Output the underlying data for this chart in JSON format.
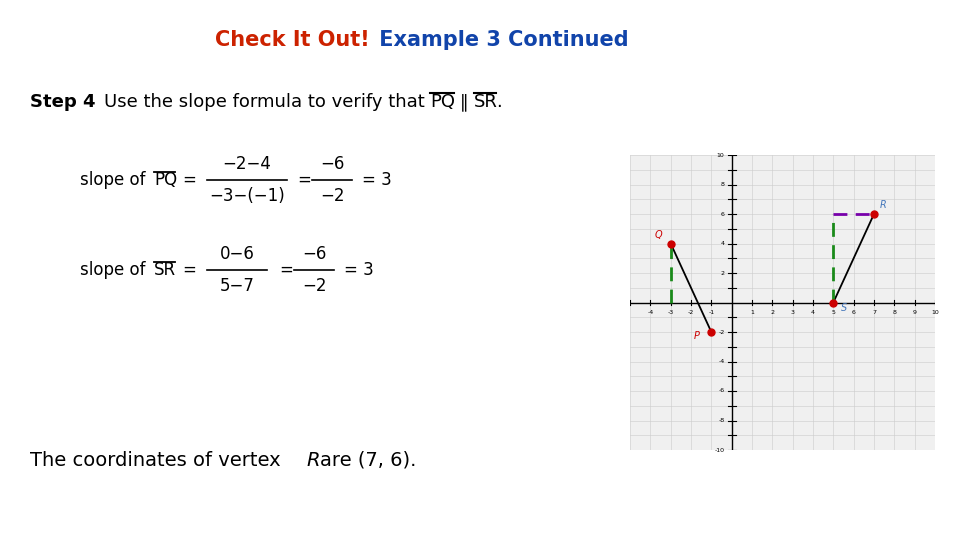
{
  "title_red": "Check It Out!",
  "title_blue": " Example 3 Continued",
  "title_fontsize": 15,
  "bg_color": "#ffffff",
  "conclusion_fontsize": 14,
  "graph": {
    "xlim": [
      -5,
      10
    ],
    "ylim": [
      -10,
      10
    ],
    "points": {
      "P": [
        -1,
        -2
      ],
      "Q": [
        -3,
        4
      ],
      "R": [
        7,
        6
      ],
      "S": [
        5,
        0
      ]
    },
    "point_color": "#cc0000",
    "line_color": "#000000",
    "green_color": "#1a8a1a",
    "purple_color": "#7700aa",
    "label_color_Q": "#cc0000",
    "label_color_R": "#4477bb",
    "label_color_S": "#4477bb",
    "label_color_P": "#cc0000",
    "grid_color": "#cccccc",
    "axis_color": "#000000"
  }
}
